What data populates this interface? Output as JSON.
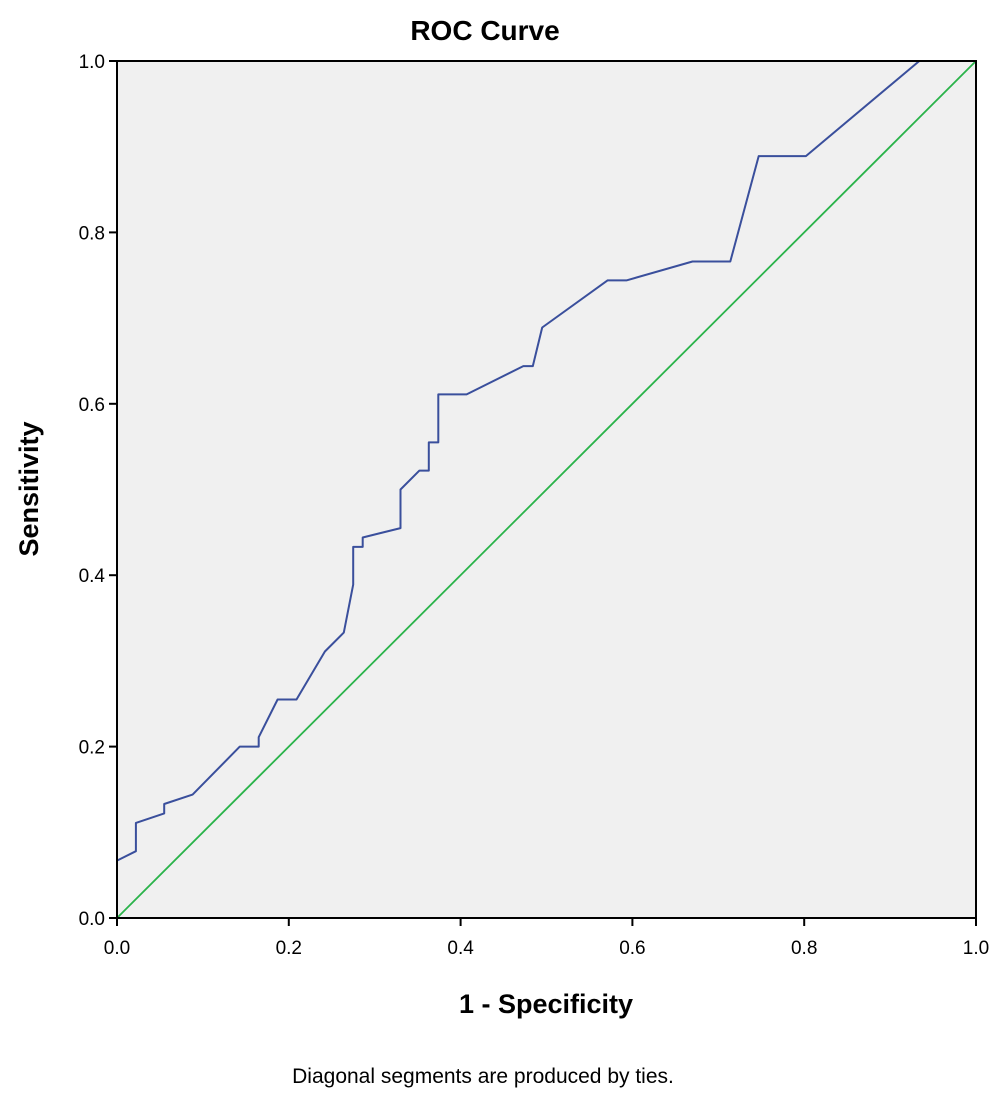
{
  "chart_data": {
    "type": "line",
    "title": "ROC Curve",
    "xlabel": "1 - Specificity",
    "ylabel": "Sensitivity",
    "footnote": "Diagonal segments are produced by ties.",
    "xlim": [
      0.0,
      1.0
    ],
    "ylim": [
      0.0,
      1.0
    ],
    "x_ticks": [
      "0.0",
      "0.2",
      "0.4",
      "0.6",
      "0.8",
      "1.0"
    ],
    "y_ticks": [
      "0.0",
      "0.2",
      "0.4",
      "0.6",
      "0.8",
      "1.0"
    ],
    "grid": false,
    "legend": "none",
    "plot_background": "#f0f0f0",
    "series": [
      {
        "color": "#3a4f9c",
        "points": [
          [
            0.0,
            0.0
          ],
          [
            0.0,
            0.067
          ],
          [
            0.022,
            0.078
          ],
          [
            0.022,
            0.111
          ],
          [
            0.055,
            0.122
          ],
          [
            0.055,
            0.133
          ],
          [
            0.088,
            0.144
          ],
          [
            0.143,
            0.2
          ],
          [
            0.165,
            0.2
          ],
          [
            0.165,
            0.211
          ],
          [
            0.187,
            0.255
          ],
          [
            0.209,
            0.255
          ],
          [
            0.242,
            0.311
          ],
          [
            0.264,
            0.333
          ],
          [
            0.275,
            0.389
          ],
          [
            0.275,
            0.433
          ],
          [
            0.286,
            0.433
          ],
          [
            0.286,
            0.444
          ],
          [
            0.33,
            0.455
          ],
          [
            0.33,
            0.5
          ],
          [
            0.352,
            0.522
          ],
          [
            0.363,
            0.522
          ],
          [
            0.363,
            0.555
          ],
          [
            0.374,
            0.555
          ],
          [
            0.374,
            0.611
          ],
          [
            0.407,
            0.611
          ],
          [
            0.473,
            0.644
          ],
          [
            0.484,
            0.644
          ],
          [
            0.495,
            0.689
          ],
          [
            0.571,
            0.744
          ],
          [
            0.593,
            0.744
          ],
          [
            0.67,
            0.766
          ],
          [
            0.714,
            0.766
          ],
          [
            0.747,
            0.889
          ],
          [
            0.802,
            0.889
          ],
          [
            0.934,
            1.0
          ],
          [
            1.0,
            1.0
          ]
        ]
      },
      {
        "color": "#2ab34a",
        "points": [
          [
            0.0,
            0.0
          ],
          [
            1.0,
            1.0
          ]
        ]
      }
    ]
  }
}
